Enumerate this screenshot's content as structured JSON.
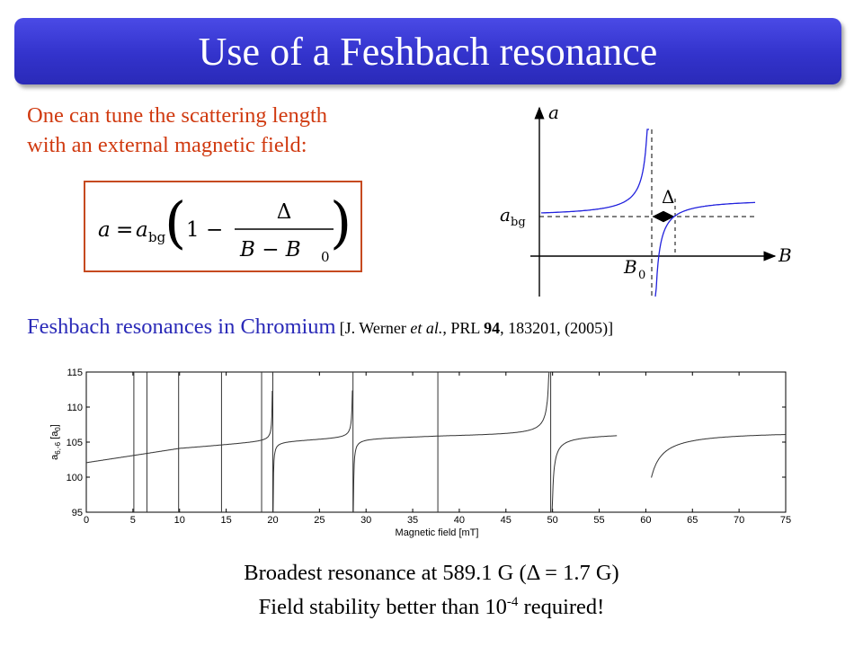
{
  "slide": {
    "title": "Use of a Feshbach resonance",
    "intro_line1": "One can tune the scattering length",
    "intro_line2": "with an external magnetic field:",
    "formula": {
      "lhs": "a",
      "abg_base": "a",
      "abg_sub": "bg",
      "one": "1",
      "minus": "−",
      "numerator": "Δ",
      "denominator": "B − B",
      "den_sub": "0"
    },
    "section_title": "Feshbach resonances in Chromium",
    "reference": {
      "pre": "[J. Werner ",
      "etal": "et al.",
      "mid": ", PRL ",
      "vol": "94",
      "post": ", 183201, (2005)]"
    },
    "footer": {
      "line1": "Broadest resonance at 589.1 G (Δ = 1.7 G)",
      "line2_pre": "Field stability better than 10",
      "line2_exp": "-4",
      "line2_post": " required!"
    },
    "colors": {
      "title_bar": "#3333cc",
      "intro_text": "#d03a10",
      "section_title": "#2a2ab8",
      "formula_border": "#c64a20",
      "curve": "#2222dd"
    }
  },
  "chart_data": [
    {
      "type": "line",
      "title": "",
      "axis_labels": {
        "y": "a",
        "x": "B",
        "abg_base": "a",
        "abg_sub": "bg",
        "b0_base": "B",
        "b0_sub": "0",
        "delta": "Δ"
      },
      "grid": false,
      "series": [
        {
          "curve": "a(B) = a_bg (1 − Δ/(B − B0))"
        }
      ]
    },
    {
      "type": "line",
      "xlabel": "Magnetic field [mT]",
      "ylabel": "a",
      "ylabel_sub": "6,-6",
      "ylabel_unit": " [a",
      "ylabel_unit_sub": "0",
      "ylabel_close": "]",
      "xlim": [
        0,
        75
      ],
      "ylim": [
        95,
        115
      ],
      "xticks": [
        "0",
        "5",
        "10",
        "15",
        "20",
        "25",
        "30",
        "35",
        "40",
        "45",
        "50",
        "55",
        "60",
        "65",
        "70",
        "75"
      ],
      "yticks": [
        "95",
        "100",
        "105",
        "110",
        "115"
      ],
      "background_level": {
        "x": [
          0,
          10,
          20,
          29,
          38,
          50,
          57
        ],
        "y": [
          102,
          104,
          105,
          105.5,
          105.8,
          106,
          106.2
        ]
      },
      "resonances": [
        {
          "B0": 5.1,
          "type": "narrow"
        },
        {
          "B0": 6.5,
          "type": "narrow"
        },
        {
          "B0": 9.9,
          "type": "narrow"
        },
        {
          "B0": 14.5,
          "type": "narrow"
        },
        {
          "B0": 18.8,
          "type": "narrow"
        },
        {
          "B0": 20.0,
          "type": "dispersive"
        },
        {
          "B0": 28.6,
          "type": "dispersive"
        },
        {
          "B0": 37.7,
          "type": "narrow"
        },
        {
          "B0": 49.8,
          "type": "dispersive"
        },
        {
          "B0": 58.9,
          "type": "broad",
          "delta_mT": 0.17
        }
      ],
      "grid": false
    }
  ]
}
